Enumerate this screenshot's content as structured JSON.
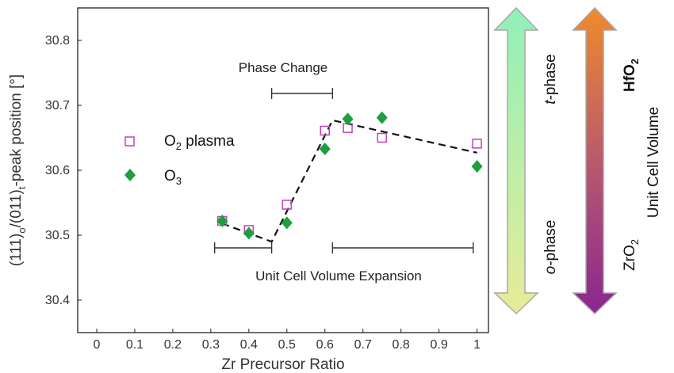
{
  "chart_data": {
    "type": "scatter",
    "xlabel": "Zr Precursor Ratio",
    "ylabel": "(111)o/(011)t-peak position [°]",
    "ylabel_parts": {
      "a": "(111)",
      "b": "o",
      "c": "/(011)",
      "d": "t",
      "e": "-peak position [°]"
    },
    "xlim": [
      -0.05,
      1.03
    ],
    "ylim": [
      30.35,
      30.85
    ],
    "xticks": [
      0,
      0.1,
      0.2,
      0.3,
      0.4,
      0.5,
      0.6,
      0.7,
      0.8,
      0.9,
      1
    ],
    "xtick_labels": [
      "0",
      "0.1",
      "0.2",
      "0.3",
      "0.4",
      "0.5",
      "0.6",
      "0.7",
      "0.8",
      "0.9",
      "1"
    ],
    "yticks": [
      30.4,
      30.5,
      30.6,
      30.7,
      30.8
    ],
    "ytick_labels": [
      "30.4",
      "30.5",
      "30.6",
      "30.7",
      "30.8"
    ],
    "grid": false,
    "legend_position": "left",
    "series": [
      {
        "name": "O2 plasma",
        "name_main": "O",
        "name_sub": "2",
        "name_rest": " plasma",
        "marker": "open-square",
        "color": "#c040c0",
        "x": [
          0.33,
          0.4,
          0.5,
          0.6,
          0.66,
          0.75,
          1.0
        ],
        "y": [
          30.522,
          30.508,
          30.547,
          30.661,
          30.665,
          30.65,
          30.641
        ]
      },
      {
        "name": "O3",
        "name_main": "O",
        "name_sub": "3",
        "name_rest": "",
        "marker": "filled-diamond",
        "color": "#1e9e3e",
        "x": [
          0.33,
          0.4,
          0.5,
          0.6,
          0.66,
          0.75,
          1.0
        ],
        "y": [
          30.522,
          30.503,
          30.519,
          30.633,
          30.679,
          30.681,
          30.606
        ]
      }
    ],
    "trend_line": {
      "style": "dashed",
      "color": "#111111",
      "x": [
        0.33,
        0.46,
        0.62,
        1.0
      ],
      "y": [
        30.518,
        30.49,
        30.677,
        30.627
      ]
    },
    "annotations": [
      {
        "text": "Phase Change",
        "bracket_x": [
          0.46,
          0.62
        ]
      },
      {
        "text": "Unit Cell Volume Expansion",
        "brackets_x": [
          [
            0.31,
            0.46
          ],
          [
            0.62,
            0.99
          ]
        ]
      }
    ]
  },
  "side_bars": {
    "phase": {
      "top_label_italic": "t",
      "top_label_rest": "-phase",
      "bottom_label_italic": "o",
      "bottom_label_rest": "-phase",
      "gradient_top": "#90f0b8",
      "gradient_bottom": "#e8ec98"
    },
    "volume": {
      "top_label_main": "HfO",
      "top_label_sub": "2",
      "bottom_label_main": "ZrO",
      "bottom_label_sub": "2",
      "title": "Unit Cell Volume",
      "gradient_top": "#f08a2c",
      "gradient_mid": "#b85a6e",
      "gradient_bottom": "#8a2690"
    }
  }
}
